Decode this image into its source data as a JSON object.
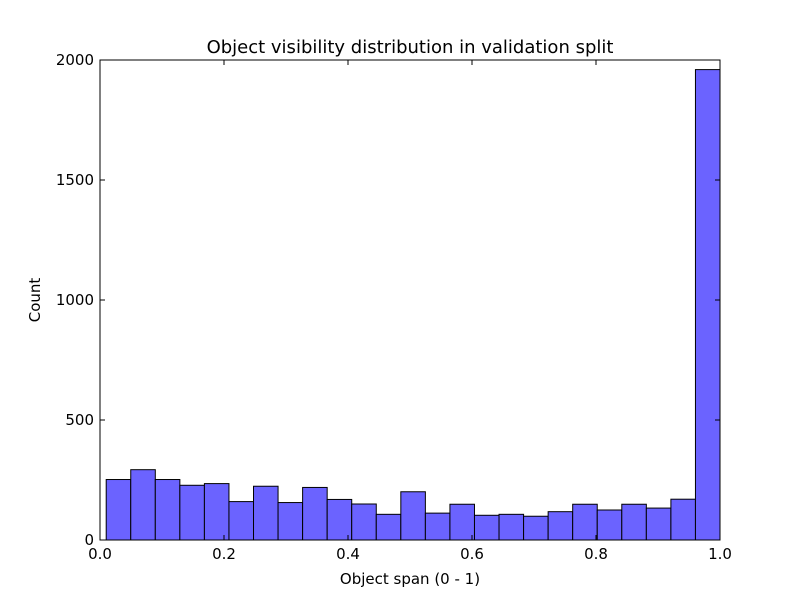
{
  "chart_data": {
    "type": "bar",
    "title": "Object visibility distribution in validation split",
    "xlabel": "Object span (0 - 1)",
    "ylabel": "Count",
    "xlim": [
      0,
      1
    ],
    "ylim": [
      0,
      2000
    ],
    "xticks": [
      "0.0",
      "0.2",
      "0.4",
      "0.6",
      "0.8",
      "1.0"
    ],
    "yticks": [
      "0",
      "500",
      "1000",
      "1500",
      "2000"
    ],
    "bin_edges": [
      0.01,
      0.0496,
      0.0892,
      0.1288,
      0.1684,
      0.208,
      0.2476,
      0.2872,
      0.3268,
      0.3664,
      0.406,
      0.4456,
      0.4852,
      0.5248,
      0.5644,
      0.604,
      0.6436,
      0.6832,
      0.7228,
      0.7624,
      0.802,
      0.8416,
      0.8812,
      0.9208,
      0.9604,
      1.0
    ],
    "values": [
      252,
      293,
      252,
      228,
      235,
      160,
      224,
      156,
      219,
      169,
      150,
      107,
      201,
      112,
      149,
      103,
      107,
      99,
      118,
      149,
      125,
      149,
      133,
      170,
      1960
    ],
    "bar_color": "#6b63ff",
    "edge_color": "#000000",
    "grid": false
  }
}
